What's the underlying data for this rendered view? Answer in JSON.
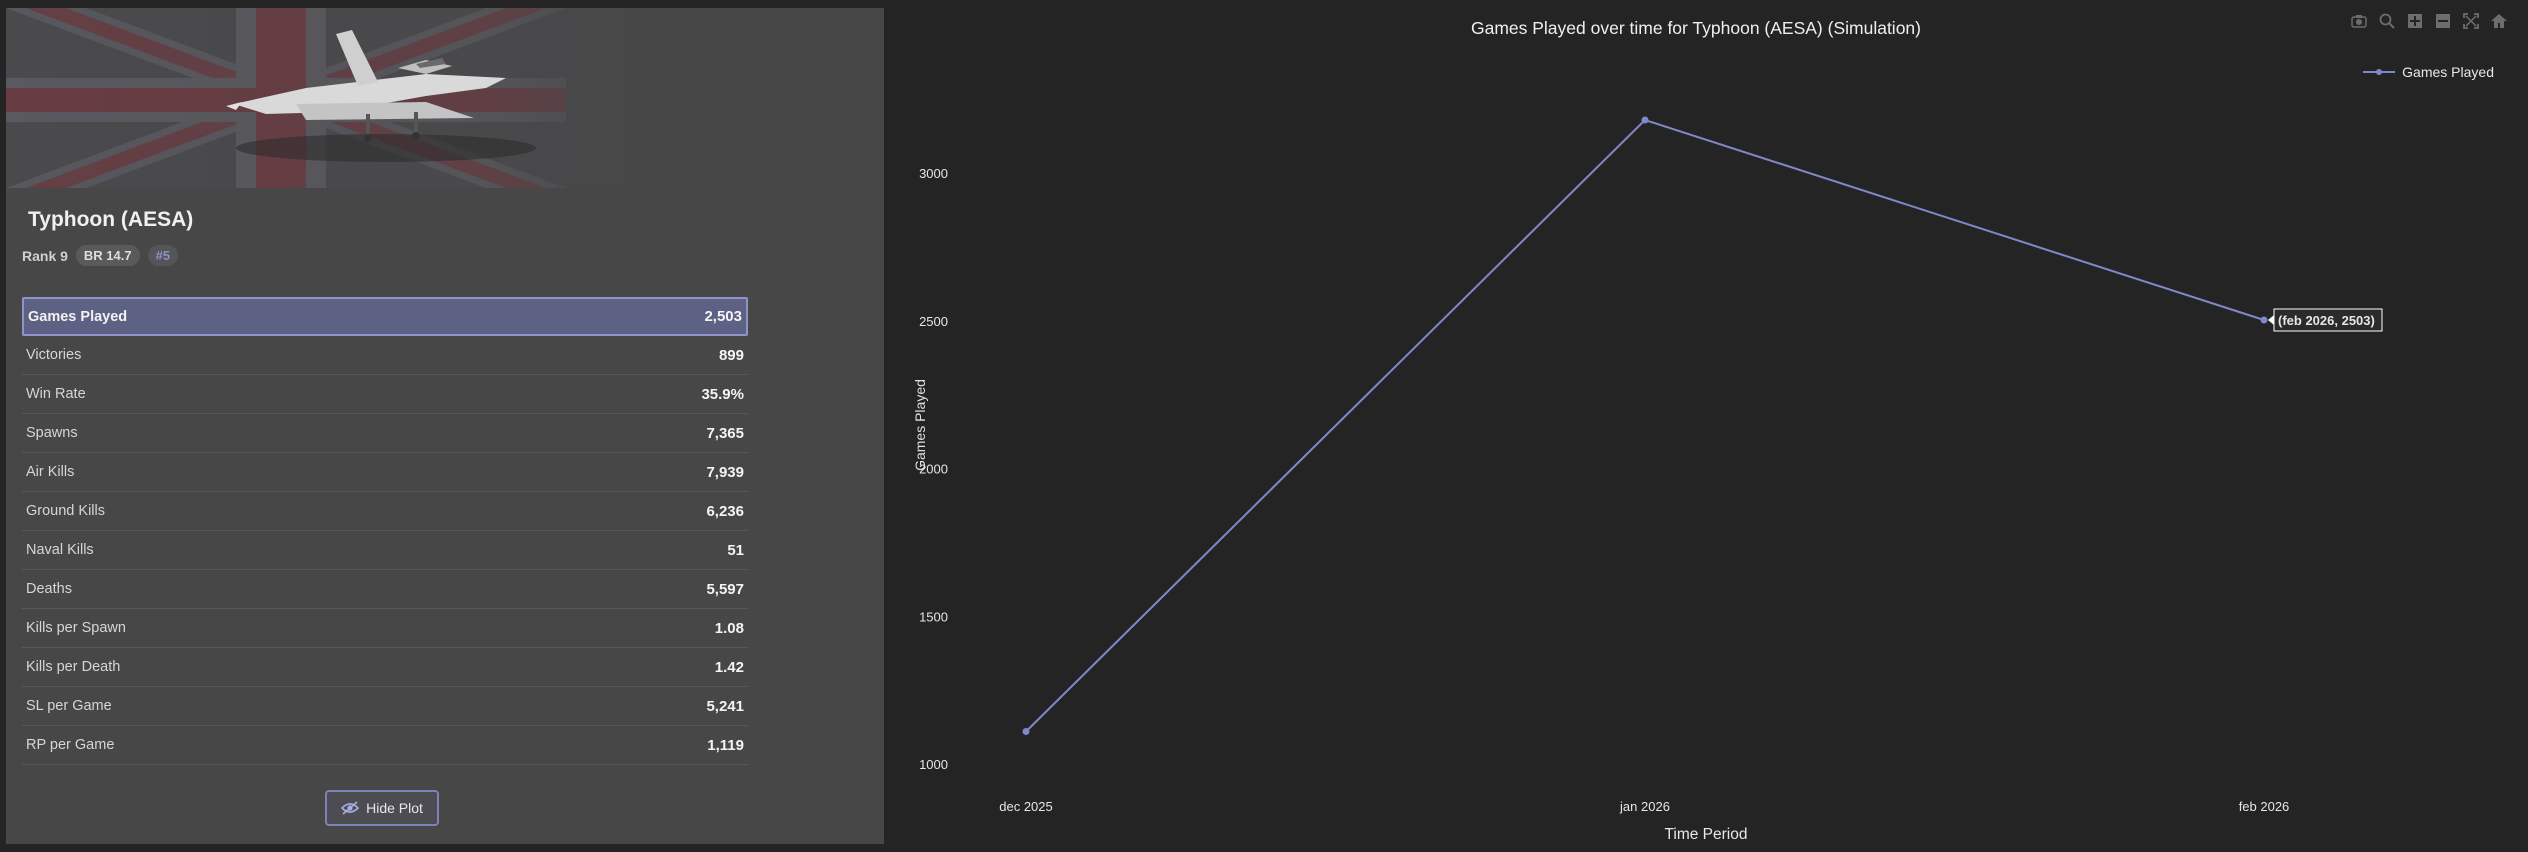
{
  "vehicle": {
    "name": "Typhoon (AESA)",
    "rank": "Rank 9",
    "br": "BR 14.7",
    "position": "#5"
  },
  "stats": [
    {
      "label": "Games Played",
      "value": "2,503",
      "selected": true
    },
    {
      "label": "Victories",
      "value": "899"
    },
    {
      "label": "Win Rate",
      "value": "35.9%"
    },
    {
      "label": "Spawns",
      "value": "7,365"
    },
    {
      "label": "Air Kills",
      "value": "7,939"
    },
    {
      "label": "Ground Kills",
      "value": "6,236"
    },
    {
      "label": "Naval Kills",
      "value": "51"
    },
    {
      "label": "Deaths",
      "value": "5,597"
    },
    {
      "label": "Kills per Spawn",
      "value": "1.08"
    },
    {
      "label": "Kills per Death",
      "value": "1.42"
    },
    {
      "label": "SL per Game",
      "value": "5,241"
    },
    {
      "label": "RP per Game",
      "value": "1,119"
    }
  ],
  "hide_plot_label": "Hide Plot",
  "modebar_icons": [
    "camera-icon",
    "zoom-icon",
    "zoom-in-icon",
    "zoom-out-icon",
    "autoscale-icon",
    "home-icon"
  ],
  "colors": {
    "line": "#8088cc",
    "selected_row": "#5d6184",
    "accent": "#8e93c9"
  },
  "chart_data": {
    "type": "line",
    "title": "Games Played over time for Typhoon (AESA) (Simulation)",
    "xlabel": "Time Period",
    "ylabel": "Games Played",
    "categories": [
      "dec 2025",
      "jan 2026",
      "feb 2026"
    ],
    "series": [
      {
        "name": "Games Played",
        "values": [
          1110,
          3180,
          2503
        ]
      }
    ],
    "yticks": [
      1000,
      1500,
      2000,
      2500,
      3000
    ],
    "ylim": [
      1000,
      3180
    ],
    "grid": false,
    "legend": "top-right",
    "hover_label": "(feb 2026, 2503)"
  }
}
